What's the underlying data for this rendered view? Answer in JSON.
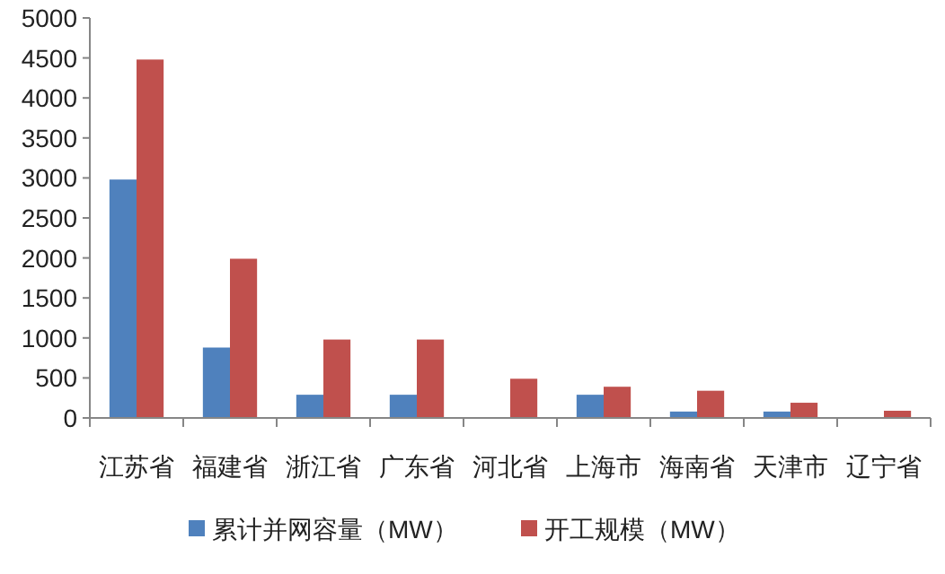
{
  "chart_data": {
    "type": "bar",
    "categories": [
      "江苏省",
      "福建省",
      "浙江省",
      "广东省",
      "河北省",
      "上海市",
      "海南省",
      "天津市",
      "辽宁省"
    ],
    "series": [
      {
        "name": "累计并网容量（MW）",
        "color": "#4f81bd",
        "values": [
          2980,
          880,
          290,
          290,
          0,
          290,
          80,
          80,
          0
        ]
      },
      {
        "name": "开工规模（MW）",
        "color": "#c0504d",
        "values": [
          4480,
          1990,
          980,
          980,
          490,
          390,
          340,
          190,
          90
        ]
      }
    ],
    "ylim": [
      0,
      5000
    ],
    "yticks": [
      0,
      500,
      1000,
      1500,
      2000,
      2500,
      3000,
      3500,
      4000,
      4500,
      5000
    ],
    "grid": false,
    "legend": "bottom"
  }
}
